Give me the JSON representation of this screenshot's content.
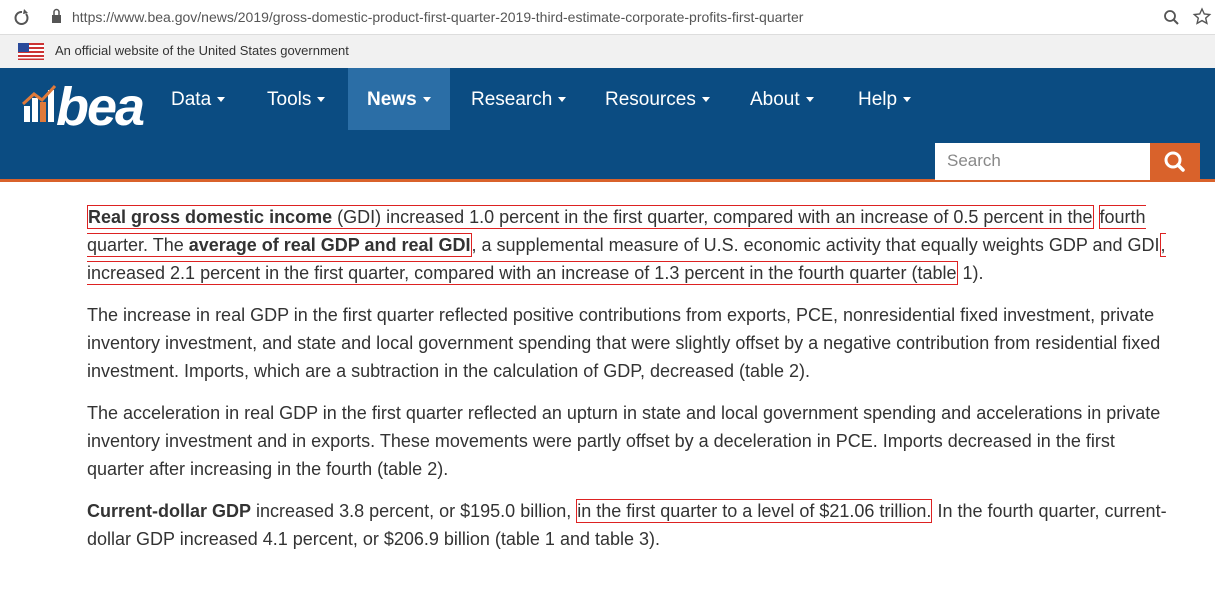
{
  "browser": {
    "url": "https://www.bea.gov/news/2019/gross-domestic-product-first-quarter-2019-third-estimate-corporate-profits-first-quarter"
  },
  "banner": {
    "text": "An official website of the United States government"
  },
  "header": {
    "logo": "bea",
    "nav": [
      "Data",
      "Tools",
      "News",
      "Research",
      "Resources",
      "About",
      "Help"
    ],
    "active_nav": 2,
    "search_placeholder": "Search"
  },
  "paragraphs": [
    {
      "parts": [
        {
          "text": "Real gross domestic income",
          "bold": true,
          "box": 1
        },
        {
          "text": " (GDI) increased 1.0 percent in the first quarter, compared with an increase of 0.5 percent in the",
          "box": 1
        },
        {
          "text": " "
        },
        {
          "text": "fourth quarter. The ",
          "box": 2
        },
        {
          "text": "average of real GDP and real GDI",
          "bold": true,
          "box": 2
        },
        {
          "text": ", a supplemental measure of U.S. economic activity that equally weights GDP and GDI"
        },
        {
          "text": ", increased 2.1 percent in the first quarter, compared with an increase of 1.3 percent in the fourth quarter (table",
          "box": 3
        },
        {
          "text": " 1)."
        }
      ]
    },
    {
      "parts": [
        {
          "text": "The increase in real GDP in the first quarter reflected positive contributions from exports, PCE, nonresidential fixed investment, private inventory investment, and state and local government spending that were slightly offset by a negative contribution from residential fixed investment. Imports, which are a subtraction in the calculation of GDP, decreased (table 2)."
        }
      ]
    },
    {
      "parts": [
        {
          "text": "The acceleration in real GDP in the first quarter reflected an upturn in state and local government spending and accelerations in private inventory investment and in exports. These movements were partly offset by a deceleration in PCE. Imports decreased in the first quarter after increasing in the fourth (table 2)."
        }
      ]
    },
    {
      "parts": [
        {
          "text": "Current-dollar GDP",
          "bold": true
        },
        {
          "text": " increased 3.8 percent, or $195.0 billion, "
        },
        {
          "text": "in the first quarter to a level of $21.06 trillion.",
          "box": 4
        },
        {
          "text": " In the fourth quarter, current-dollar GDP increased 4.1 percent, or $206.9 billion (table 1 and table 3)."
        }
      ]
    }
  ]
}
